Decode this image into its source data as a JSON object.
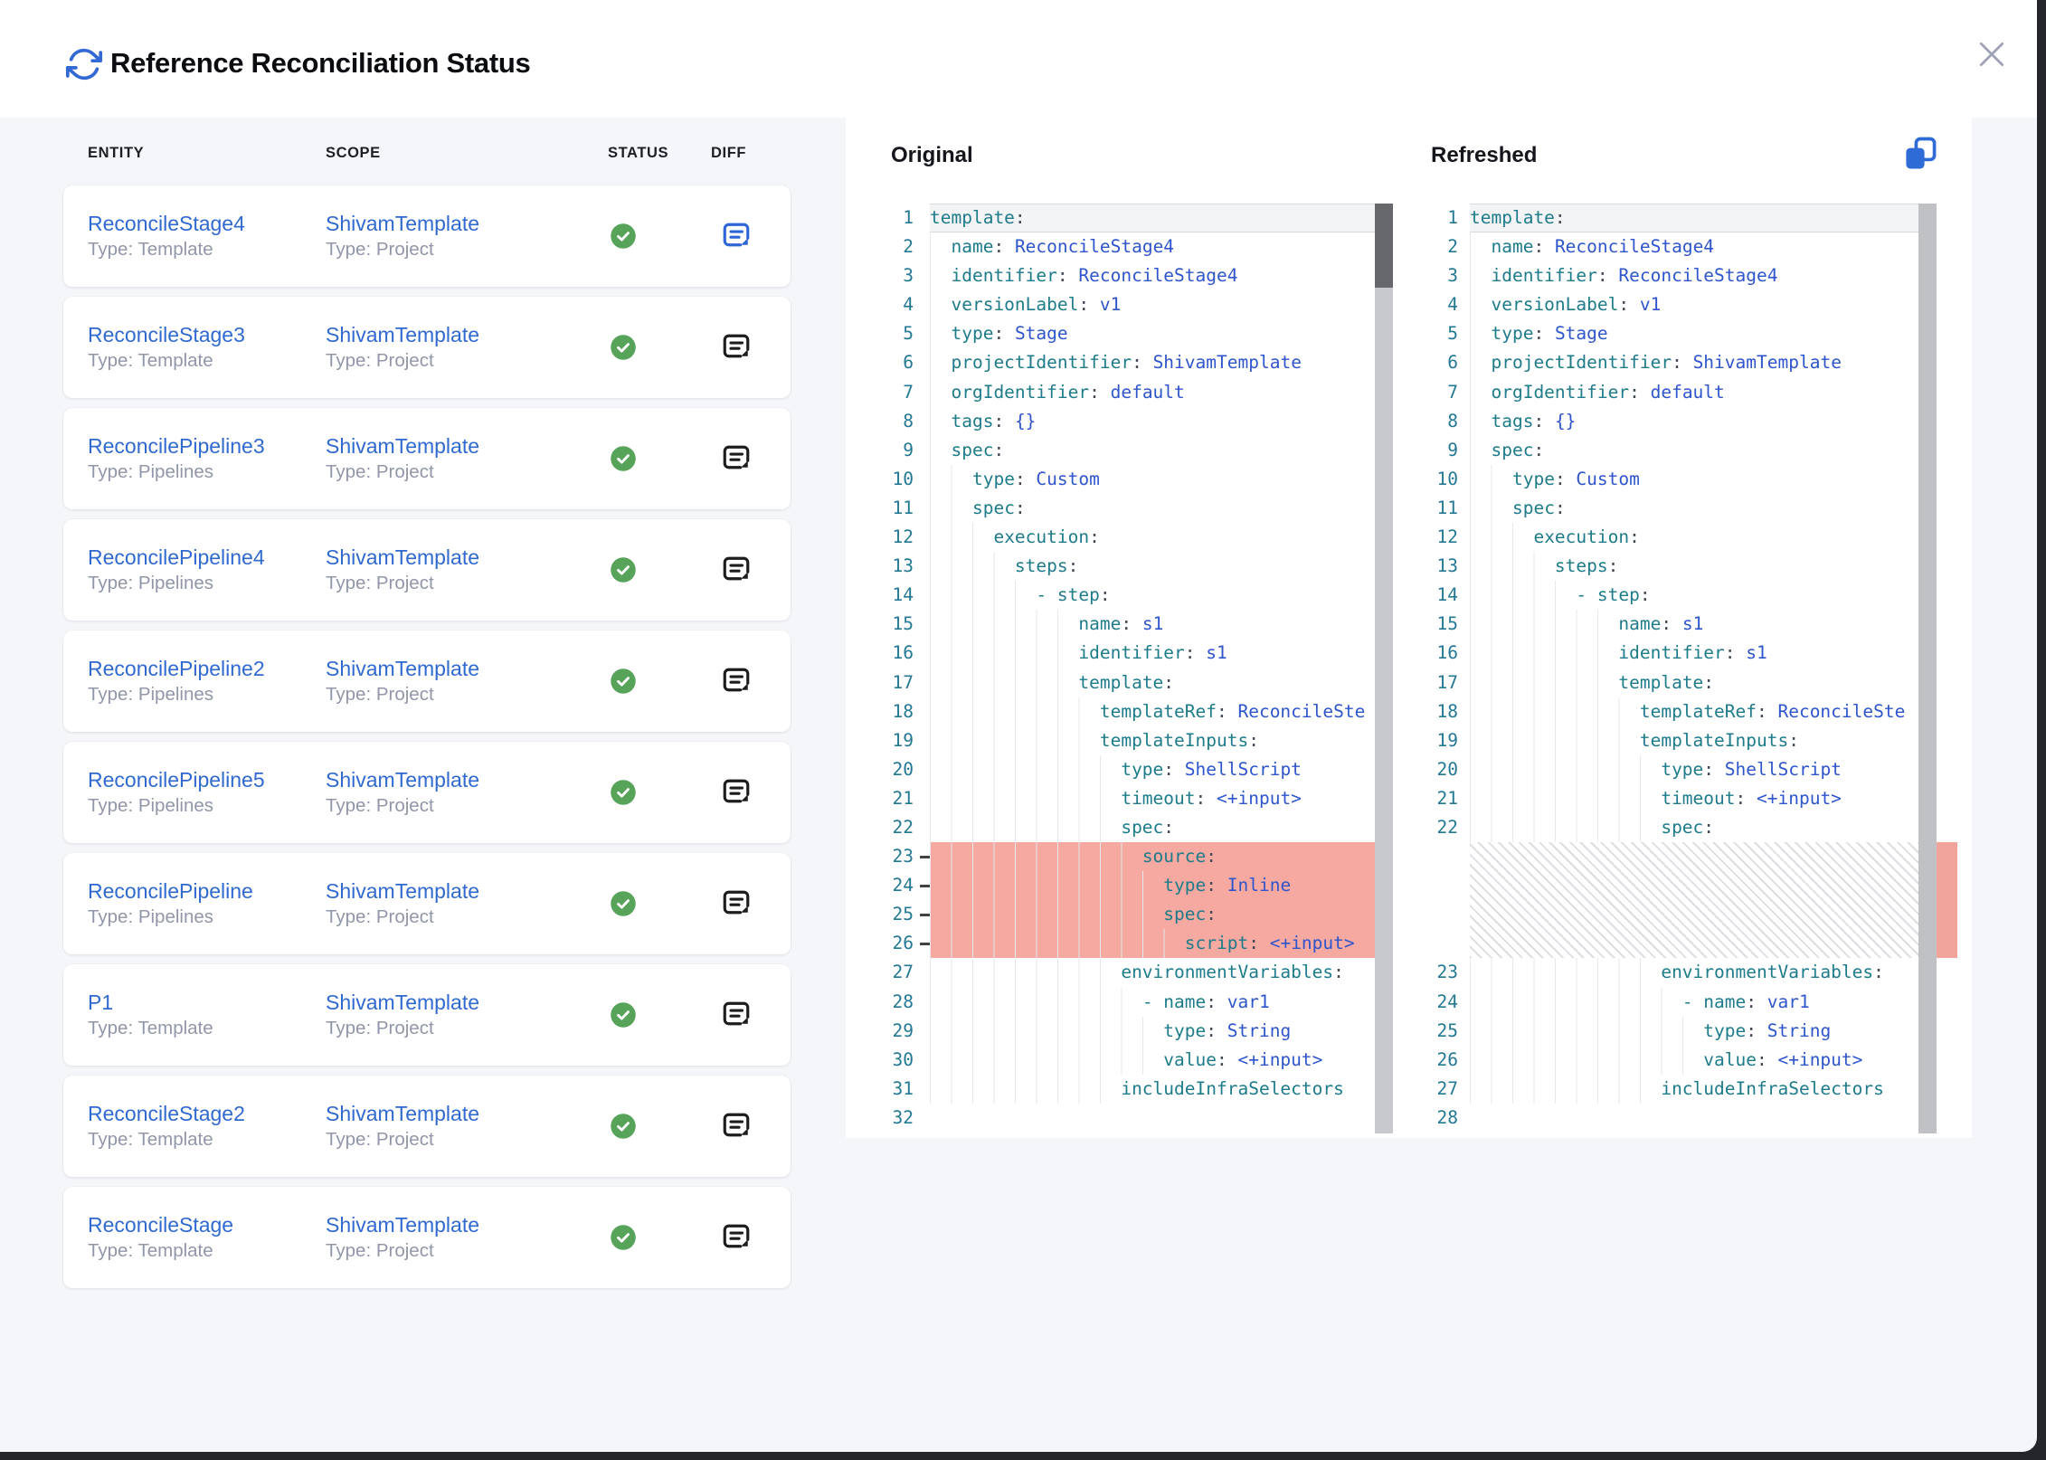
{
  "modal": {
    "title": "Reference Reconciliation Status"
  },
  "table": {
    "columns": [
      "ENTITY",
      "SCOPE",
      "STATUS",
      "DIFF"
    ],
    "rows": [
      {
        "entity": "ReconcileStage4",
        "entity_type": "Type: Template",
        "scope": "ShivamTemplate",
        "scope_type": "Type: Project",
        "status": "success",
        "diff_highlight": true
      },
      {
        "entity": "ReconcileStage3",
        "entity_type": "Type: Template",
        "scope": "ShivamTemplate",
        "scope_type": "Type: Project",
        "status": "success",
        "diff_highlight": false
      },
      {
        "entity": "ReconcilePipeline3",
        "entity_type": "Type: Pipelines",
        "scope": "ShivamTemplate",
        "scope_type": "Type: Project",
        "status": "success",
        "diff_highlight": false
      },
      {
        "entity": "ReconcilePipeline4",
        "entity_type": "Type: Pipelines",
        "scope": "ShivamTemplate",
        "scope_type": "Type: Project",
        "status": "success",
        "diff_highlight": false
      },
      {
        "entity": "ReconcilePipeline2",
        "entity_type": "Type: Pipelines",
        "scope": "ShivamTemplate",
        "scope_type": "Type: Project",
        "status": "success",
        "diff_highlight": false
      },
      {
        "entity": "ReconcilePipeline5",
        "entity_type": "Type: Pipelines",
        "scope": "ShivamTemplate",
        "scope_type": "Type: Project",
        "status": "success",
        "diff_highlight": false
      },
      {
        "entity": "ReconcilePipeline",
        "entity_type": "Type: Pipelines",
        "scope": "ShivamTemplate",
        "scope_type": "Type: Project",
        "status": "success",
        "diff_highlight": false
      },
      {
        "entity": "P1",
        "entity_type": "Type: Template",
        "scope": "ShivamTemplate",
        "scope_type": "Type: Project",
        "status": "success",
        "diff_highlight": false
      },
      {
        "entity": "ReconcileStage2",
        "entity_type": "Type: Template",
        "scope": "ShivamTemplate",
        "scope_type": "Type: Project",
        "status": "success",
        "diff_highlight": false
      },
      {
        "entity": "ReconcileStage",
        "entity_type": "Type: Template",
        "scope": "ShivamTemplate",
        "scope_type": "Type: Project",
        "status": "success",
        "diff_highlight": false
      }
    ]
  },
  "diff": {
    "original_label": "Original",
    "refreshed_label": "Refreshed",
    "original_lines": [
      {
        "n": 1,
        "t": "template:"
      },
      {
        "n": 2,
        "t": "  name: ReconcileStage4"
      },
      {
        "n": 3,
        "t": "  identifier: ReconcileStage4"
      },
      {
        "n": 4,
        "t": "  versionLabel: v1"
      },
      {
        "n": 5,
        "t": "  type: Stage"
      },
      {
        "n": 6,
        "t": "  projectIdentifier: ShivamTemplate"
      },
      {
        "n": 7,
        "t": "  orgIdentifier: default"
      },
      {
        "n": 8,
        "t": "  tags: {}"
      },
      {
        "n": 9,
        "t": "  spec:"
      },
      {
        "n": 10,
        "t": "    type: Custom"
      },
      {
        "n": 11,
        "t": "    spec:"
      },
      {
        "n": 12,
        "t": "      execution:"
      },
      {
        "n": 13,
        "t": "        steps:"
      },
      {
        "n": 14,
        "t": "          - step:"
      },
      {
        "n": 15,
        "t": "              name: s1"
      },
      {
        "n": 16,
        "t": "              identifier: s1"
      },
      {
        "n": 17,
        "t": "              template:"
      },
      {
        "n": 18,
        "t": "                templateRef: ReconcileSte"
      },
      {
        "n": 19,
        "t": "                templateInputs:"
      },
      {
        "n": 20,
        "t": "                  type: ShellScript"
      },
      {
        "n": 21,
        "t": "                  timeout: <+input>"
      },
      {
        "n": 22,
        "t": "                  spec:"
      },
      {
        "n": 23,
        "t": "                    source:",
        "d": true
      },
      {
        "n": 24,
        "t": "                      type: Inline",
        "d": true
      },
      {
        "n": 25,
        "t": "                      spec:",
        "d": true
      },
      {
        "n": 26,
        "t": "                        script: <+input>",
        "d": true
      },
      {
        "n": 27,
        "t": "                  environmentVariables:"
      },
      {
        "n": 28,
        "t": "                    - name: var1"
      },
      {
        "n": 29,
        "t": "                      type: String"
      },
      {
        "n": 30,
        "t": "                      value: <+input>"
      },
      {
        "n": 31,
        "t": "                  includeInfraSelectors"
      },
      {
        "n": 32,
        "t": ""
      }
    ],
    "refreshed_lines": [
      {
        "n": 1,
        "t": "template:"
      },
      {
        "n": 2,
        "t": "  name: ReconcileStage4"
      },
      {
        "n": 3,
        "t": "  identifier: ReconcileStage4"
      },
      {
        "n": 4,
        "t": "  versionLabel: v1"
      },
      {
        "n": 5,
        "t": "  type: Stage"
      },
      {
        "n": 6,
        "t": "  projectIdentifier: ShivamTemplate"
      },
      {
        "n": 7,
        "t": "  orgIdentifier: default"
      },
      {
        "n": 8,
        "t": "  tags: {}"
      },
      {
        "n": 9,
        "t": "  spec:"
      },
      {
        "n": 10,
        "t": "    type: Custom"
      },
      {
        "n": 11,
        "t": "    spec:"
      },
      {
        "n": 12,
        "t": "      execution:"
      },
      {
        "n": 13,
        "t": "        steps:"
      },
      {
        "n": 14,
        "t": "          - step:"
      },
      {
        "n": 15,
        "t": "              name: s1"
      },
      {
        "n": 16,
        "t": "              identifier: s1"
      },
      {
        "n": 17,
        "t": "              template:"
      },
      {
        "n": 18,
        "t": "                templateRef: ReconcileSte"
      },
      {
        "n": 19,
        "t": "                templateInputs:"
      },
      {
        "n": 20,
        "t": "                  type: ShellScript"
      },
      {
        "n": 21,
        "t": "                  timeout: <+input>"
      },
      {
        "n": 22,
        "t": "                  spec:"
      },
      {
        "gap": 4
      },
      {
        "n": 23,
        "t": "                  environmentVariables:"
      },
      {
        "n": 24,
        "t": "                    - name: var1"
      },
      {
        "n": 25,
        "t": "                      type: String"
      },
      {
        "n": 26,
        "t": "                      value: <+input>"
      },
      {
        "n": 27,
        "t": "                  includeInfraSelectors"
      },
      {
        "n": 28,
        "t": ""
      }
    ]
  },
  "colors": {
    "accent_blue": "#3168d4",
    "link_blue": "#3069cf",
    "success_green": "#57a35a",
    "deleted_highlight": "#f5a9a1",
    "code_key": "#1d7b8a",
    "code_value": "#2f55cc",
    "line_number": "#237893"
  }
}
